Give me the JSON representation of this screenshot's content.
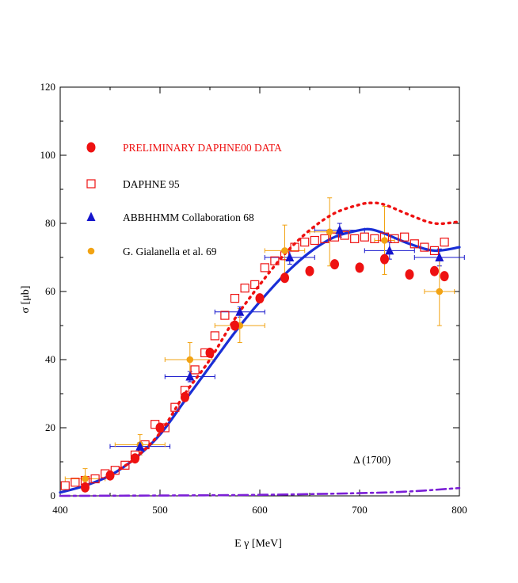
{
  "chart_data": {
    "type": "scatter",
    "xlabel": "E γ   [MeV]",
    "ylabel": "σ   [μb]",
    "xlim": [
      400,
      800
    ],
    "ylim": [
      0,
      120
    ],
    "xticks": [
      "400",
      "500",
      "600",
      "700",
      "800"
    ],
    "yticks": [
      "0",
      "20",
      "40",
      "60",
      "80",
      "100",
      "120"
    ],
    "grid": false,
    "legend_position": "upper-left",
    "annotation": "Δ (1700)",
    "series": [
      {
        "name": "PRELIMINARY DAPHNE00 DATA",
        "marker": "filled-circle",
        "color": "#ee1111",
        "points": [
          [
            425,
            2.5
          ],
          [
            450,
            6
          ],
          [
            475,
            11
          ],
          [
            500,
            20
          ],
          [
            525,
            29
          ],
          [
            550,
            42
          ],
          [
            575,
            50
          ],
          [
            600,
            58
          ],
          [
            625,
            64
          ],
          [
            650,
            66
          ],
          [
            675,
            68
          ],
          [
            700,
            67
          ],
          [
            725,
            69.5
          ],
          [
            750,
            65
          ],
          [
            775,
            66
          ],
          [
            785,
            64.5
          ]
        ]
      },
      {
        "name": "DAPHNE 95",
        "marker": "open-square",
        "color": "#ee1111",
        "points": [
          [
            405,
            3
          ],
          [
            415,
            4
          ],
          [
            425,
            4.5
          ],
          [
            435,
            5
          ],
          [
            445,
            6.5
          ],
          [
            455,
            7.5
          ],
          [
            465,
            9
          ],
          [
            475,
            12
          ],
          [
            485,
            15
          ],
          [
            495,
            21
          ],
          [
            505,
            20
          ],
          [
            515,
            26
          ],
          [
            525,
            31
          ],
          [
            535,
            37
          ],
          [
            545,
            42
          ],
          [
            555,
            47
          ],
          [
            565,
            53
          ],
          [
            575,
            58
          ],
          [
            585,
            61
          ],
          [
            595,
            62
          ],
          [
            605,
            67
          ],
          [
            615,
            69
          ],
          [
            625,
            70.5
          ],
          [
            635,
            73
          ],
          [
            645,
            74.5
          ],
          [
            655,
            75
          ],
          [
            665,
            75.5
          ],
          [
            675,
            76
          ],
          [
            685,
            76.5
          ],
          [
            695,
            75.5
          ],
          [
            705,
            76
          ],
          [
            715,
            75.5
          ],
          [
            725,
            76
          ],
          [
            735,
            75.5
          ],
          [
            745,
            76
          ],
          [
            755,
            74
          ],
          [
            765,
            73
          ],
          [
            775,
            72
          ],
          [
            785,
            74.5
          ]
        ]
      },
      {
        "name": "ABBHHMM Collaboration 68",
        "marker": "filled-triangle",
        "color": "#1515cc",
        "points": [
          [
            480,
            14.5,
            30,
            1.2
          ],
          [
            530,
            35,
            25,
            1.5
          ],
          [
            580,
            54,
            25,
            1.5
          ],
          [
            630,
            70,
            25,
            2
          ],
          [
            680,
            78,
            25,
            2
          ],
          [
            730,
            72,
            25,
            2.5
          ],
          [
            780,
            70,
            25,
            2.5
          ]
        ]
      },
      {
        "name": "G. Gialanella et al. 69",
        "marker": "filled-circle-small",
        "color": "#f2a313",
        "points": [
          [
            425,
            5,
            20,
            3
          ],
          [
            480,
            15,
            25,
            3
          ],
          [
            530,
            40,
            25,
            5
          ],
          [
            580,
            50,
            25,
            5
          ],
          [
            625,
            72,
            20,
            7.5
          ],
          [
            670,
            77.5,
            20,
            10
          ],
          [
            725,
            75,
            10,
            10
          ],
          [
            780,
            60,
            15,
            10
          ]
        ]
      },
      {
        "name": "solid-fit",
        "line": "solid",
        "color": "#1a2fd6",
        "points": [
          [
            400,
            1
          ],
          [
            425,
            3
          ],
          [
            450,
            6
          ],
          [
            475,
            11
          ],
          [
            500,
            18
          ],
          [
            525,
            28
          ],
          [
            550,
            38
          ],
          [
            575,
            48
          ],
          [
            600,
            57
          ],
          [
            625,
            65
          ],
          [
            650,
            71.5
          ],
          [
            675,
            76
          ],
          [
            700,
            78
          ],
          [
            712,
            78.2
          ],
          [
            725,
            77
          ],
          [
            750,
            74
          ],
          [
            775,
            72
          ],
          [
            800,
            73
          ]
        ]
      },
      {
        "name": "dotted-fit",
        "line": "dotted",
        "color": "#ee1111",
        "points": [
          [
            460,
            8
          ],
          [
            475,
            11
          ],
          [
            500,
            18.5
          ],
          [
            525,
            30
          ],
          [
            550,
            40
          ],
          [
            575,
            52
          ],
          [
            600,
            62
          ],
          [
            625,
            71
          ],
          [
            650,
            78
          ],
          [
            675,
            83
          ],
          [
            700,
            85.5
          ],
          [
            712,
            86
          ],
          [
            725,
            85.5
          ],
          [
            750,
            82.5
          ],
          [
            775,
            80
          ],
          [
            800,
            80.5
          ]
        ]
      },
      {
        "name": "delta-1700",
        "line": "dash-dot",
        "color": "#7b1fd6",
        "points": [
          [
            400,
            0
          ],
          [
            500,
            0.1
          ],
          [
            600,
            0.3
          ],
          [
            700,
            0.8
          ],
          [
            750,
            1.3
          ],
          [
            800,
            2.3
          ]
        ]
      }
    ]
  }
}
